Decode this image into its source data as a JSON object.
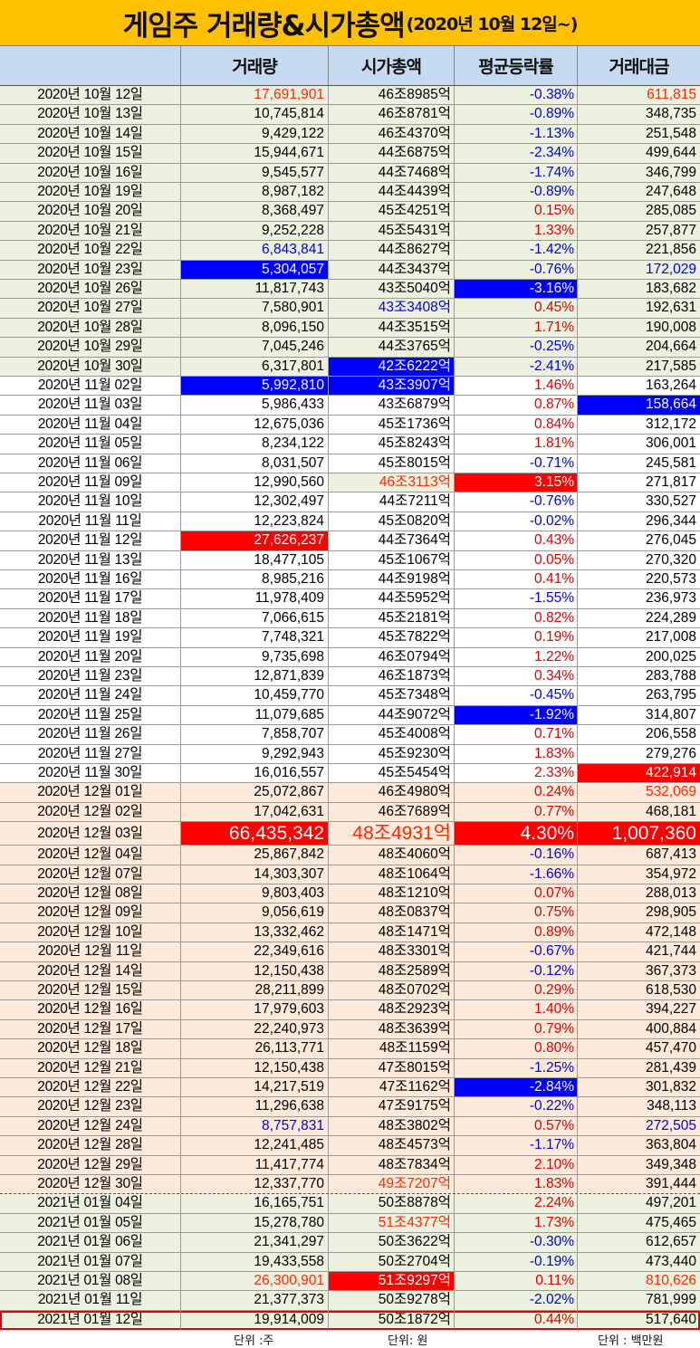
{
  "title": {
    "main": "게임주 거래량&시가총액",
    "sub": "(2020년 10월 12일~)"
  },
  "colors": {
    "title_bg": "#ffc000",
    "header_bg": "#c5d9f1",
    "group_green": "#ebf1de",
    "group_white": "#ffffff",
    "group_peach": "#fde9d9",
    "up": "#e00000",
    "down": "#0000e0",
    "highlight_red": "#ff0000",
    "highlight_blue": "#0000ff"
  },
  "chart_data": {
    "type": "table",
    "title": "게임주 거래량&시가총액(2020년 10월 12일~)",
    "columns": [
      "",
      "거래량",
      "시가총액",
      "평균등락률",
      "거래대금"
    ],
    "rows": [
      {
        "date": "2020년 10월 12일",
        "volume": "17,691,901",
        "market_cap": "46조8985억",
        "avg_change": "-0.38%",
        "trade_value": "611,815",
        "group": "green",
        "vol_style": "txt-red",
        "amt_style": "txt-red"
      },
      {
        "date": "2020년 10월 13일",
        "volume": "10,745,814",
        "market_cap": "46조8781억",
        "avg_change": "-0.89%",
        "trade_value": "348,735",
        "group": "green"
      },
      {
        "date": "2020년 10월 14일",
        "volume": "9,429,122",
        "market_cap": "46조4370억",
        "avg_change": "-1.13%",
        "trade_value": "251,548",
        "group": "green"
      },
      {
        "date": "2020년 10월 15일",
        "volume": "15,944,671",
        "market_cap": "44조6875억",
        "avg_change": "-2.34%",
        "trade_value": "499,644",
        "group": "green"
      },
      {
        "date": "2020년 10월 16일",
        "volume": "9,545,577",
        "market_cap": "44조7468억",
        "avg_change": "-1.74%",
        "trade_value": "346,799",
        "group": "green"
      },
      {
        "date": "2020년 10월 19일",
        "volume": "8,987,182",
        "market_cap": "44조4439억",
        "avg_change": "-0.89%",
        "trade_value": "247,648",
        "group": "green"
      },
      {
        "date": "2020년 10월 20일",
        "volume": "8,368,497",
        "market_cap": "45조4251억",
        "avg_change": "0.15%",
        "trade_value": "285,085",
        "group": "green"
      },
      {
        "date": "2020년 10월 21일",
        "volume": "9,252,228",
        "market_cap": "45조5431억",
        "avg_change": "1.33%",
        "trade_value": "257,877",
        "group": "green"
      },
      {
        "date": "2020년 10월 22일",
        "volume": "6,843,841",
        "market_cap": "44조8627억",
        "avg_change": "-1.42%",
        "trade_value": "221,856",
        "group": "green",
        "vol_style": "txt-blue"
      },
      {
        "date": "2020년 10월 23일",
        "volume": "5,304,057",
        "market_cap": "44조3437억",
        "avg_change": "-0.76%",
        "trade_value": "172,029",
        "group": "green",
        "vol_style": "hl-blue",
        "amt_style": "txt-blue"
      },
      {
        "date": "2020년 10월 26일",
        "volume": "11,817,743",
        "market_cap": "43조5040억",
        "avg_change": "-3.16%",
        "trade_value": "183,682",
        "group": "green",
        "rate_style": "hl-blue"
      },
      {
        "date": "2020년 10월 27일",
        "volume": "7,580,901",
        "market_cap": "43조3408억",
        "avg_change": "0.45%",
        "trade_value": "192,631",
        "group": "green",
        "cap_style": "txt-blue"
      },
      {
        "date": "2020년 10월 28일",
        "volume": "8,096,150",
        "market_cap": "44조3515억",
        "avg_change": "1.71%",
        "trade_value": "190,008",
        "group": "green"
      },
      {
        "date": "2020년 10월 29일",
        "volume": "7,045,246",
        "market_cap": "44조3765억",
        "avg_change": "-0.25%",
        "trade_value": "204,664",
        "group": "green"
      },
      {
        "date": "2020년 10월 30일",
        "volume": "6,317,801",
        "market_cap": "42조6222억",
        "avg_change": "-2.41%",
        "trade_value": "217,585",
        "group": "green",
        "cap_style": "hl-blue"
      },
      {
        "date": "2020년 11월 02일",
        "volume": "5,992,810",
        "market_cap": "43조3907억",
        "avg_change": "1.46%",
        "trade_value": "163,264",
        "group": "white",
        "vol_style": "hl-blue",
        "cap_style": "hl-blue"
      },
      {
        "date": "2020년 11월 03일",
        "volume": "5,986,433",
        "market_cap": "43조6879억",
        "avg_change": "0.87%",
        "trade_value": "158,664",
        "group": "white",
        "amt_style": "hl-blue"
      },
      {
        "date": "2020년 11월 04일",
        "volume": "12,675,036",
        "market_cap": "45조1736억",
        "avg_change": "0.84%",
        "trade_value": "312,172",
        "group": "white"
      },
      {
        "date": "2020년 11월 05일",
        "volume": "8,234,122",
        "market_cap": "45조8243억",
        "avg_change": "1.81%",
        "trade_value": "306,001",
        "group": "white"
      },
      {
        "date": "2020년 11월 06일",
        "volume": "8,031,507",
        "market_cap": "45조8015억",
        "avg_change": "-0.71%",
        "trade_value": "245,581",
        "group": "white"
      },
      {
        "date": "2020년 11월 09일",
        "volume": "12,990,560",
        "market_cap": "46조3113억",
        "avg_change": "3.15%",
        "trade_value": "271,817",
        "group": "white",
        "cap_style": "txt-red-green",
        "rate_style": "hl-red"
      },
      {
        "date": "2020년 11월 10일",
        "volume": "12,302,497",
        "market_cap": "44조7211억",
        "avg_change": "-0.76%",
        "trade_value": "330,527",
        "group": "white"
      },
      {
        "date": "2020년 11월 11일",
        "volume": "12,223,824",
        "market_cap": "45조0820억",
        "avg_change": "-0.02%",
        "trade_value": "296,344",
        "group": "white"
      },
      {
        "date": "2020년 11월 12일",
        "volume": "27,626,237",
        "market_cap": "44조7364억",
        "avg_change": "0.43%",
        "trade_value": "276,045",
        "group": "white",
        "vol_style": "hl-red"
      },
      {
        "date": "2020년 11월 13일",
        "volume": "18,477,105",
        "market_cap": "45조1067억",
        "avg_change": "0.05%",
        "trade_value": "270,320",
        "group": "white"
      },
      {
        "date": "2020년 11월 16일",
        "volume": "8,985,216",
        "market_cap": "44조9198억",
        "avg_change": "0.41%",
        "trade_value": "220,573",
        "group": "white"
      },
      {
        "date": "2020년 11월 17일",
        "volume": "11,978,409",
        "market_cap": "44조5952억",
        "avg_change": "-1.55%",
        "trade_value": "236,973",
        "group": "white"
      },
      {
        "date": "2020년 11월 18일",
        "volume": "7,066,615",
        "market_cap": "45조2181억",
        "avg_change": "0.82%",
        "trade_value": "224,289",
        "group": "white"
      },
      {
        "date": "2020년 11월 19일",
        "volume": "7,748,321",
        "market_cap": "45조7822억",
        "avg_change": "0.19%",
        "trade_value": "217,008",
        "group": "white"
      },
      {
        "date": "2020년 11월 20일",
        "volume": "9,735,698",
        "market_cap": "46조0794억",
        "avg_change": "1.22%",
        "trade_value": "200,025",
        "group": "white"
      },
      {
        "date": "2020년 11월 23일",
        "volume": "12,871,839",
        "market_cap": "46조1873억",
        "avg_change": "0.34%",
        "trade_value": "283,788",
        "group": "white"
      },
      {
        "date": "2020년 11월 24일",
        "volume": "10,459,770",
        "market_cap": "45조7348억",
        "avg_change": "-0.45%",
        "trade_value": "263,795",
        "group": "white"
      },
      {
        "date": "2020년 11월 25일",
        "volume": "11,079,685",
        "market_cap": "44조9072억",
        "avg_change": "-1.92%",
        "trade_value": "314,807",
        "group": "white",
        "rate_style": "hl-blue"
      },
      {
        "date": "2020년 11월 26일",
        "volume": "7,858,707",
        "market_cap": "45조4008억",
        "avg_change": "0.71%",
        "trade_value": "206,558",
        "group": "white"
      },
      {
        "date": "2020년 11월 27일",
        "volume": "9,292,943",
        "market_cap": "45조9230억",
        "avg_change": "1.83%",
        "trade_value": "279,276",
        "group": "white"
      },
      {
        "date": "2020년 11월 30일",
        "volume": "16,016,557",
        "market_cap": "45조5454억",
        "avg_change": "2.33%",
        "trade_value": "422,914",
        "group": "white",
        "amt_style": "hl-red"
      },
      {
        "date": "2020년 12월 01일",
        "volume": "25,072,867",
        "market_cap": "46조4980억",
        "avg_change": "0.24%",
        "trade_value": "532,069",
        "group": "peach",
        "amt_style": "txt-red"
      },
      {
        "date": "2020년 12월 02일",
        "volume": "17,042,631",
        "market_cap": "46조7689억",
        "avg_change": "0.77%",
        "trade_value": "468,181",
        "group": "peach"
      },
      {
        "date": "2020년 12월 03일",
        "volume": "66,435,342",
        "market_cap": "48조4931억",
        "avg_change": "4.30%",
        "trade_value": "1,007,360",
        "group": "peach",
        "vol_style": "hl-red big",
        "cap_style": "txt-red big",
        "rate_style": "hl-red big",
        "amt_style": "hl-red big"
      },
      {
        "date": "2020년 12월 04일",
        "volume": "25,867,842",
        "market_cap": "48조4060억",
        "avg_change": "-0.16%",
        "trade_value": "687,413",
        "group": "peach"
      },
      {
        "date": "2020년 12월 07일",
        "volume": "14,303,307",
        "market_cap": "48조1064억",
        "avg_change": "-1.66%",
        "trade_value": "354,972",
        "group": "peach"
      },
      {
        "date": "2020년 12월 08일",
        "volume": "9,803,403",
        "market_cap": "48조1210억",
        "avg_change": "0.07%",
        "trade_value": "288,013",
        "group": "peach"
      },
      {
        "date": "2020년 12월 09일",
        "volume": "9,056,619",
        "market_cap": "48조0837억",
        "avg_change": "0.75%",
        "trade_value": "298,905",
        "group": "peach"
      },
      {
        "date": "2020년 12월 10일",
        "volume": "13,332,462",
        "market_cap": "48조1471억",
        "avg_change": "0.89%",
        "trade_value": "472,148",
        "group": "peach"
      },
      {
        "date": "2020년 12월 11일",
        "volume": "22,349,616",
        "market_cap": "48조3301억",
        "avg_change": "-0.67%",
        "trade_value": "421,744",
        "group": "peach"
      },
      {
        "date": "2020년 12월 14일",
        "volume": "12,150,438",
        "market_cap": "48조2589억",
        "avg_change": "-0.12%",
        "trade_value": "367,373",
        "group": "peach"
      },
      {
        "date": "2020년 12월 15일",
        "volume": "28,211,899",
        "market_cap": "48조0702억",
        "avg_change": "0.29%",
        "trade_value": "618,530",
        "group": "peach"
      },
      {
        "date": "2020년 12월 16일",
        "volume": "17,979,603",
        "market_cap": "48조2923억",
        "avg_change": "1.40%",
        "trade_value": "394,227",
        "group": "peach"
      },
      {
        "date": "2020년 12월 17일",
        "volume": "22,240,973",
        "market_cap": "48조3639억",
        "avg_change": "0.79%",
        "trade_value": "400,884",
        "group": "peach"
      },
      {
        "date": "2020년 12월 18일",
        "volume": "26,113,771",
        "market_cap": "48조1159억",
        "avg_change": "0.80%",
        "trade_value": "457,470",
        "group": "peach"
      },
      {
        "date": "2020년 12월 21일",
        "volume": "12,150,438",
        "market_cap": "47조8015억",
        "avg_change": "-1.25%",
        "trade_value": "281,439",
        "group": "peach"
      },
      {
        "date": "2020년 12월 22일",
        "volume": "14,217,519",
        "market_cap": "47조1162억",
        "avg_change": "-2.84%",
        "trade_value": "301,832",
        "group": "peach",
        "rate_style": "hl-blue"
      },
      {
        "date": "2020년 12월 23일",
        "volume": "11,296,638",
        "market_cap": "47조9175억",
        "avg_change": "-0.22%",
        "trade_value": "348,113",
        "group": "peach"
      },
      {
        "date": "2020년 12월 24일",
        "volume": "8,757,831",
        "market_cap": "48조3802억",
        "avg_change": "0.57%",
        "trade_value": "272,505",
        "group": "peach",
        "vol_style": "txt-blue",
        "amt_style": "txt-blue"
      },
      {
        "date": "2020년 12월 28일",
        "volume": "12,241,485",
        "market_cap": "48조4573억",
        "avg_change": "-1.17%",
        "trade_value": "363,804",
        "group": "peach"
      },
      {
        "date": "2020년 12월 29일",
        "volume": "11,417,774",
        "market_cap": "48조7834억",
        "avg_change": "2.10%",
        "trade_value": "349,348",
        "group": "peach"
      },
      {
        "date": "2020년 12월 30일",
        "volume": "12,337,770",
        "market_cap": "49조7207억",
        "avg_change": "1.83%",
        "trade_value": "391,444",
        "group": "peach",
        "cap_style": "txt-red",
        "dashed": true
      },
      {
        "date": "2021년 01월 04일",
        "volume": "16,165,751",
        "market_cap": "50조8878억",
        "avg_change": "2.24%",
        "trade_value": "497,201",
        "group": "green"
      },
      {
        "date": "2021년 01월 05일",
        "volume": "15,278,780",
        "market_cap": "51조4377억",
        "avg_change": "1.73%",
        "trade_value": "475,465",
        "group": "green",
        "cap_style": "txt-red"
      },
      {
        "date": "2021년 01월 06일",
        "volume": "21,341,297",
        "market_cap": "50조3622억",
        "avg_change": "-0.30%",
        "trade_value": "612,657",
        "group": "green"
      },
      {
        "date": "2021년 01월 07일",
        "volume": "19,433,558",
        "market_cap": "50조2704억",
        "avg_change": "-0.19%",
        "trade_value": "473,440",
        "group": "green"
      },
      {
        "date": "2021년 01월 08일",
        "volume": "26,300,901",
        "market_cap": "51조9297억",
        "avg_change": "0.11%",
        "trade_value": "810,626",
        "group": "green",
        "vol_style": "txt-red",
        "cap_style": "hl-red",
        "amt_style": "txt-red"
      },
      {
        "date": "2021년 01월 11일",
        "volume": "21,377,373",
        "market_cap": "50조9278억",
        "avg_change": "-2.02%",
        "trade_value": "781,999",
        "group": "green"
      },
      {
        "date": "2021년 01월 12일",
        "volume": "19,914,009",
        "market_cap": "50조1872억",
        "avg_change": "0.44%",
        "trade_value": "517,640",
        "group": "green",
        "boxed": true
      }
    ]
  },
  "footer": {
    "unit_volume": "단위 :주",
    "unit_cap": "단위: 원",
    "unit_amount": "단위 : 백만원"
  }
}
